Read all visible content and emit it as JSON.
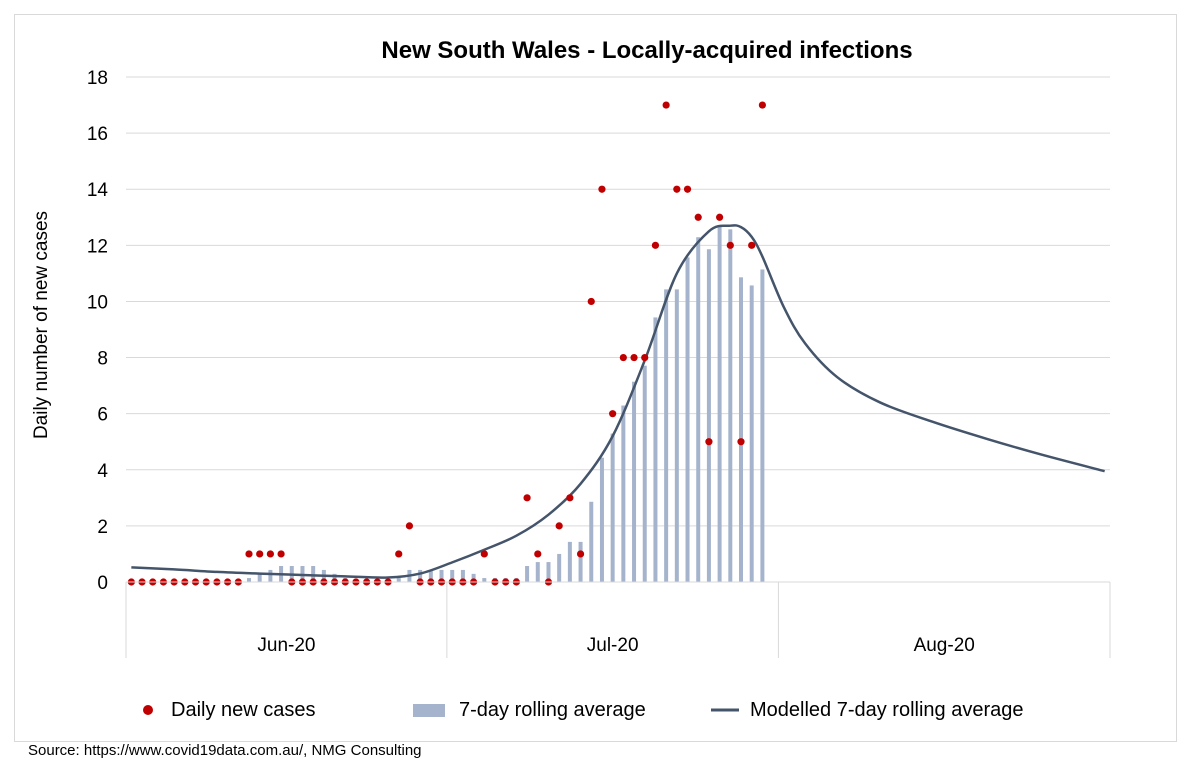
{
  "source_text": "Source: https://www.covid19data.com.au/, NMG Consulting",
  "chart_data": {
    "type": "bar",
    "title": "New South Wales - Locally-acquired infections",
    "ylabel": "Daily number  of new cases",
    "xlabel": "",
    "ylim": [
      0,
      18
    ],
    "yticks": [
      0,
      2,
      4,
      6,
      8,
      10,
      12,
      14,
      16,
      18
    ],
    "grid": true,
    "legend_position": "bottom",
    "x_start": "2020-06-01",
    "x_end": "2020-08-31",
    "month_labels": [
      {
        "label": "Jun-20",
        "start": "2020-06-01",
        "end": "2020-06-30"
      },
      {
        "label": "Jul-20",
        "start": "2020-07-01",
        "end": "2020-07-31"
      },
      {
        "label": "Aug-20",
        "start": "2020-08-01",
        "end": "2020-08-31"
      }
    ],
    "colors": {
      "daily": "#c00000",
      "rolling": "#a5b4cc",
      "modelled": "#44546a",
      "grid": "#d9d9d9"
    },
    "series": [
      {
        "name": "Daily new cases",
        "style": "scatter",
        "start_date": "2020-06-01",
        "values": [
          0,
          0,
          0,
          0,
          0,
          0,
          0,
          0,
          0,
          0,
          0,
          1,
          1,
          1,
          1,
          0,
          0,
          0,
          0,
          0,
          0,
          0,
          0,
          0,
          0,
          1,
          2,
          0,
          0,
          0,
          0,
          0,
          0,
          1,
          0,
          0,
          0,
          3,
          1,
          0,
          2,
          3,
          1,
          10,
          14,
          6,
          8,
          8,
          8,
          12,
          17,
          14,
          14,
          13,
          5,
          13,
          12,
          5,
          12,
          17
        ]
      },
      {
        "name": "7-day rolling average",
        "style": "bar",
        "start_date": "2020-06-01",
        "values": [
          0,
          0,
          0,
          0,
          0,
          0,
          0,
          0,
          0,
          0,
          0,
          0.14,
          0.29,
          0.43,
          0.57,
          0.57,
          0.57,
          0.57,
          0.43,
          0.29,
          0.14,
          0,
          0,
          0,
          0,
          0.14,
          0.43,
          0.43,
          0.43,
          0.43,
          0.43,
          0.43,
          0.29,
          0.14,
          0.14,
          0.14,
          0.14,
          0.57,
          0.71,
          0.71,
          1.0,
          1.43,
          1.43,
          2.86,
          4.43,
          5.29,
          6.29,
          7.14,
          7.71,
          9.43,
          10.43,
          10.43,
          11.57,
          12.29,
          11.86,
          12.71,
          12.57,
          10.86,
          10.57,
          11.14
        ]
      },
      {
        "name": "Modelled 7-day rolling average",
        "style": "line",
        "x": [
          "2020-06-01",
          "2020-06-05",
          "2020-06-09",
          "2020-06-13",
          "2020-06-17",
          "2020-06-21",
          "2020-06-25",
          "2020-06-28",
          "2020-07-01",
          "2020-07-04",
          "2020-07-07",
          "2020-07-10",
          "2020-07-13",
          "2020-07-16",
          "2020-07-19",
          "2020-07-22",
          "2020-07-25",
          "2020-07-27",
          "2020-07-28",
          "2020-07-29",
          "2020-07-30",
          "2020-08-01",
          "2020-08-03",
          "2020-08-06",
          "2020-08-10",
          "2020-08-15",
          "2020-08-20",
          "2020-08-25",
          "2020-08-31"
        ],
        "values": [
          0.52,
          0.45,
          0.36,
          0.3,
          0.25,
          0.2,
          0.16,
          0.3,
          0.7,
          1.15,
          1.65,
          2.4,
          3.5,
          5.2,
          7.9,
          11.0,
          12.5,
          12.7,
          12.65,
          12.3,
          11.6,
          9.8,
          8.5,
          7.3,
          6.4,
          5.7,
          5.1,
          4.55,
          3.95
        ]
      }
    ]
  }
}
